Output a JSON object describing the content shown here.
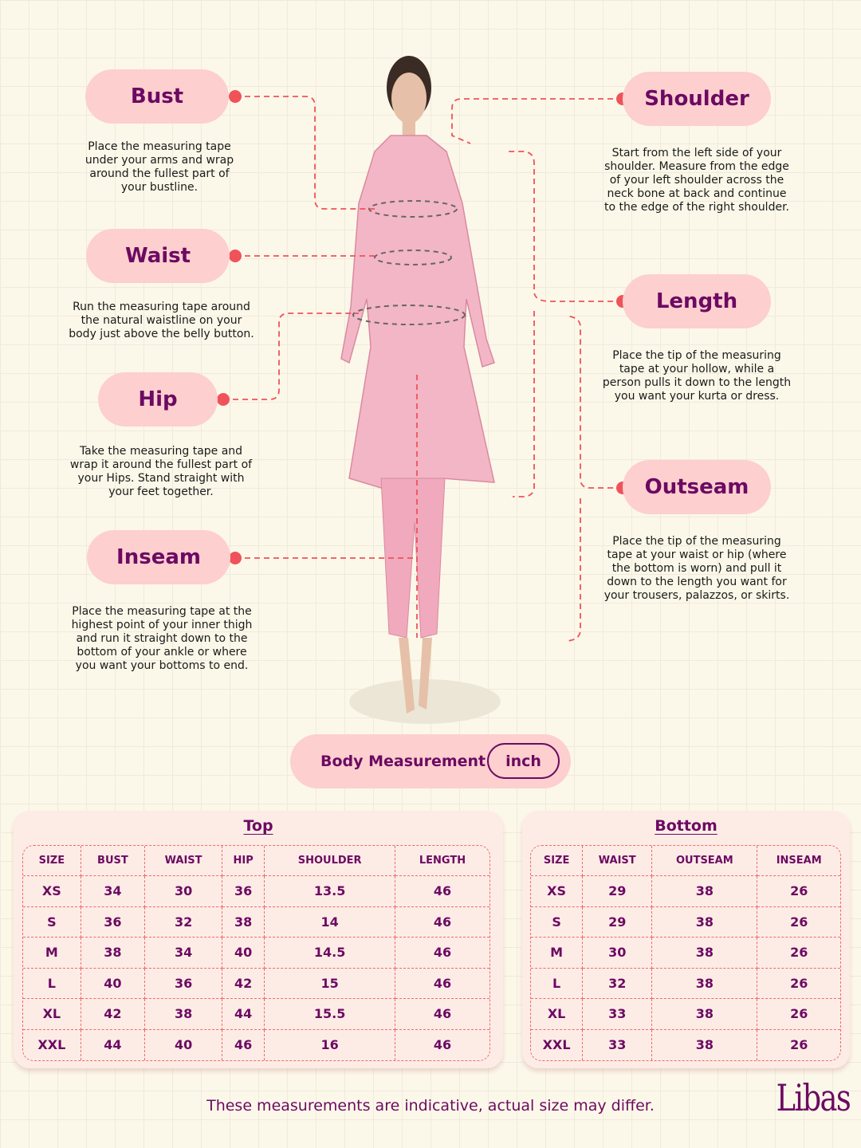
{
  "measurements": {
    "bust": {
      "label": "Bust",
      "desc": "Place the measuring tape under your arms and wrap around the fullest part of your bustline."
    },
    "waist": {
      "label": "Waist",
      "desc": "Run the measuring tape around the natural waistline on your body just above the belly button."
    },
    "hip": {
      "label": "Hip",
      "desc": "Take the measuring tape and wrap it around the fullest part of your Hips. Stand straight with your feet together."
    },
    "inseam": {
      "label": "Inseam",
      "desc": "Place the measuring tape at the highest point of your inner thigh and run it straight down to the bottom of your ankle or where you want your bottoms to end."
    },
    "shoulder": {
      "label": "Shoulder",
      "desc": "Start from the left side of your shoulder. Measure from the edge of your left shoulder across the neck bone at back and continue to the edge of the right shoulder."
    },
    "length": {
      "label": "Length",
      "desc": "Place the tip of the measuring tape at your hollow, while a person pulls it down to the length you want your kurta or dress."
    },
    "outseam": {
      "label": "Outseam",
      "desc": "Place the tip of the measuring tape at your waist or hip (where the bottom is worn) and pull it down to the length you want for your trousers, palazzos, or skirts."
    }
  },
  "unit_bar": {
    "label": "Body Measurement",
    "unit": "inch"
  },
  "top_table": {
    "title": "Top",
    "headers": [
      "SIZE",
      "BUST",
      "WAIST",
      "HIP",
      "SHOULDER",
      "LENGTH"
    ],
    "rows": [
      [
        "XS",
        "34",
        "30",
        "36",
        "13.5",
        "46"
      ],
      [
        "S",
        "36",
        "32",
        "38",
        "14",
        "46"
      ],
      [
        "M",
        "38",
        "34",
        "40",
        "14.5",
        "46"
      ],
      [
        "L",
        "40",
        "36",
        "42",
        "15",
        "46"
      ],
      [
        "XL",
        "42",
        "38",
        "44",
        "15.5",
        "46"
      ],
      [
        "XXL",
        "44",
        "40",
        "46",
        "16",
        "46"
      ]
    ]
  },
  "bottom_table": {
    "title": "Bottom",
    "headers": [
      "SIZE",
      "WAIST",
      "OUTSEAM",
      "INSEAM"
    ],
    "rows": [
      [
        "XS",
        "29",
        "38",
        "26"
      ],
      [
        "S",
        "29",
        "38",
        "26"
      ],
      [
        "M",
        "30",
        "38",
        "26"
      ],
      [
        "L",
        "32",
        "38",
        "26"
      ],
      [
        "XL",
        "33",
        "38",
        "26"
      ],
      [
        "XXL",
        "33",
        "38",
        "26"
      ]
    ]
  },
  "footer": {
    "note": "These measurements are indicative, actual size may differ.",
    "logo": "Libas"
  },
  "colors": {
    "accent": "#f0525a",
    "brand": "#6c0a62",
    "pill": "#fdcfcf",
    "background": "#fcf8e9"
  }
}
